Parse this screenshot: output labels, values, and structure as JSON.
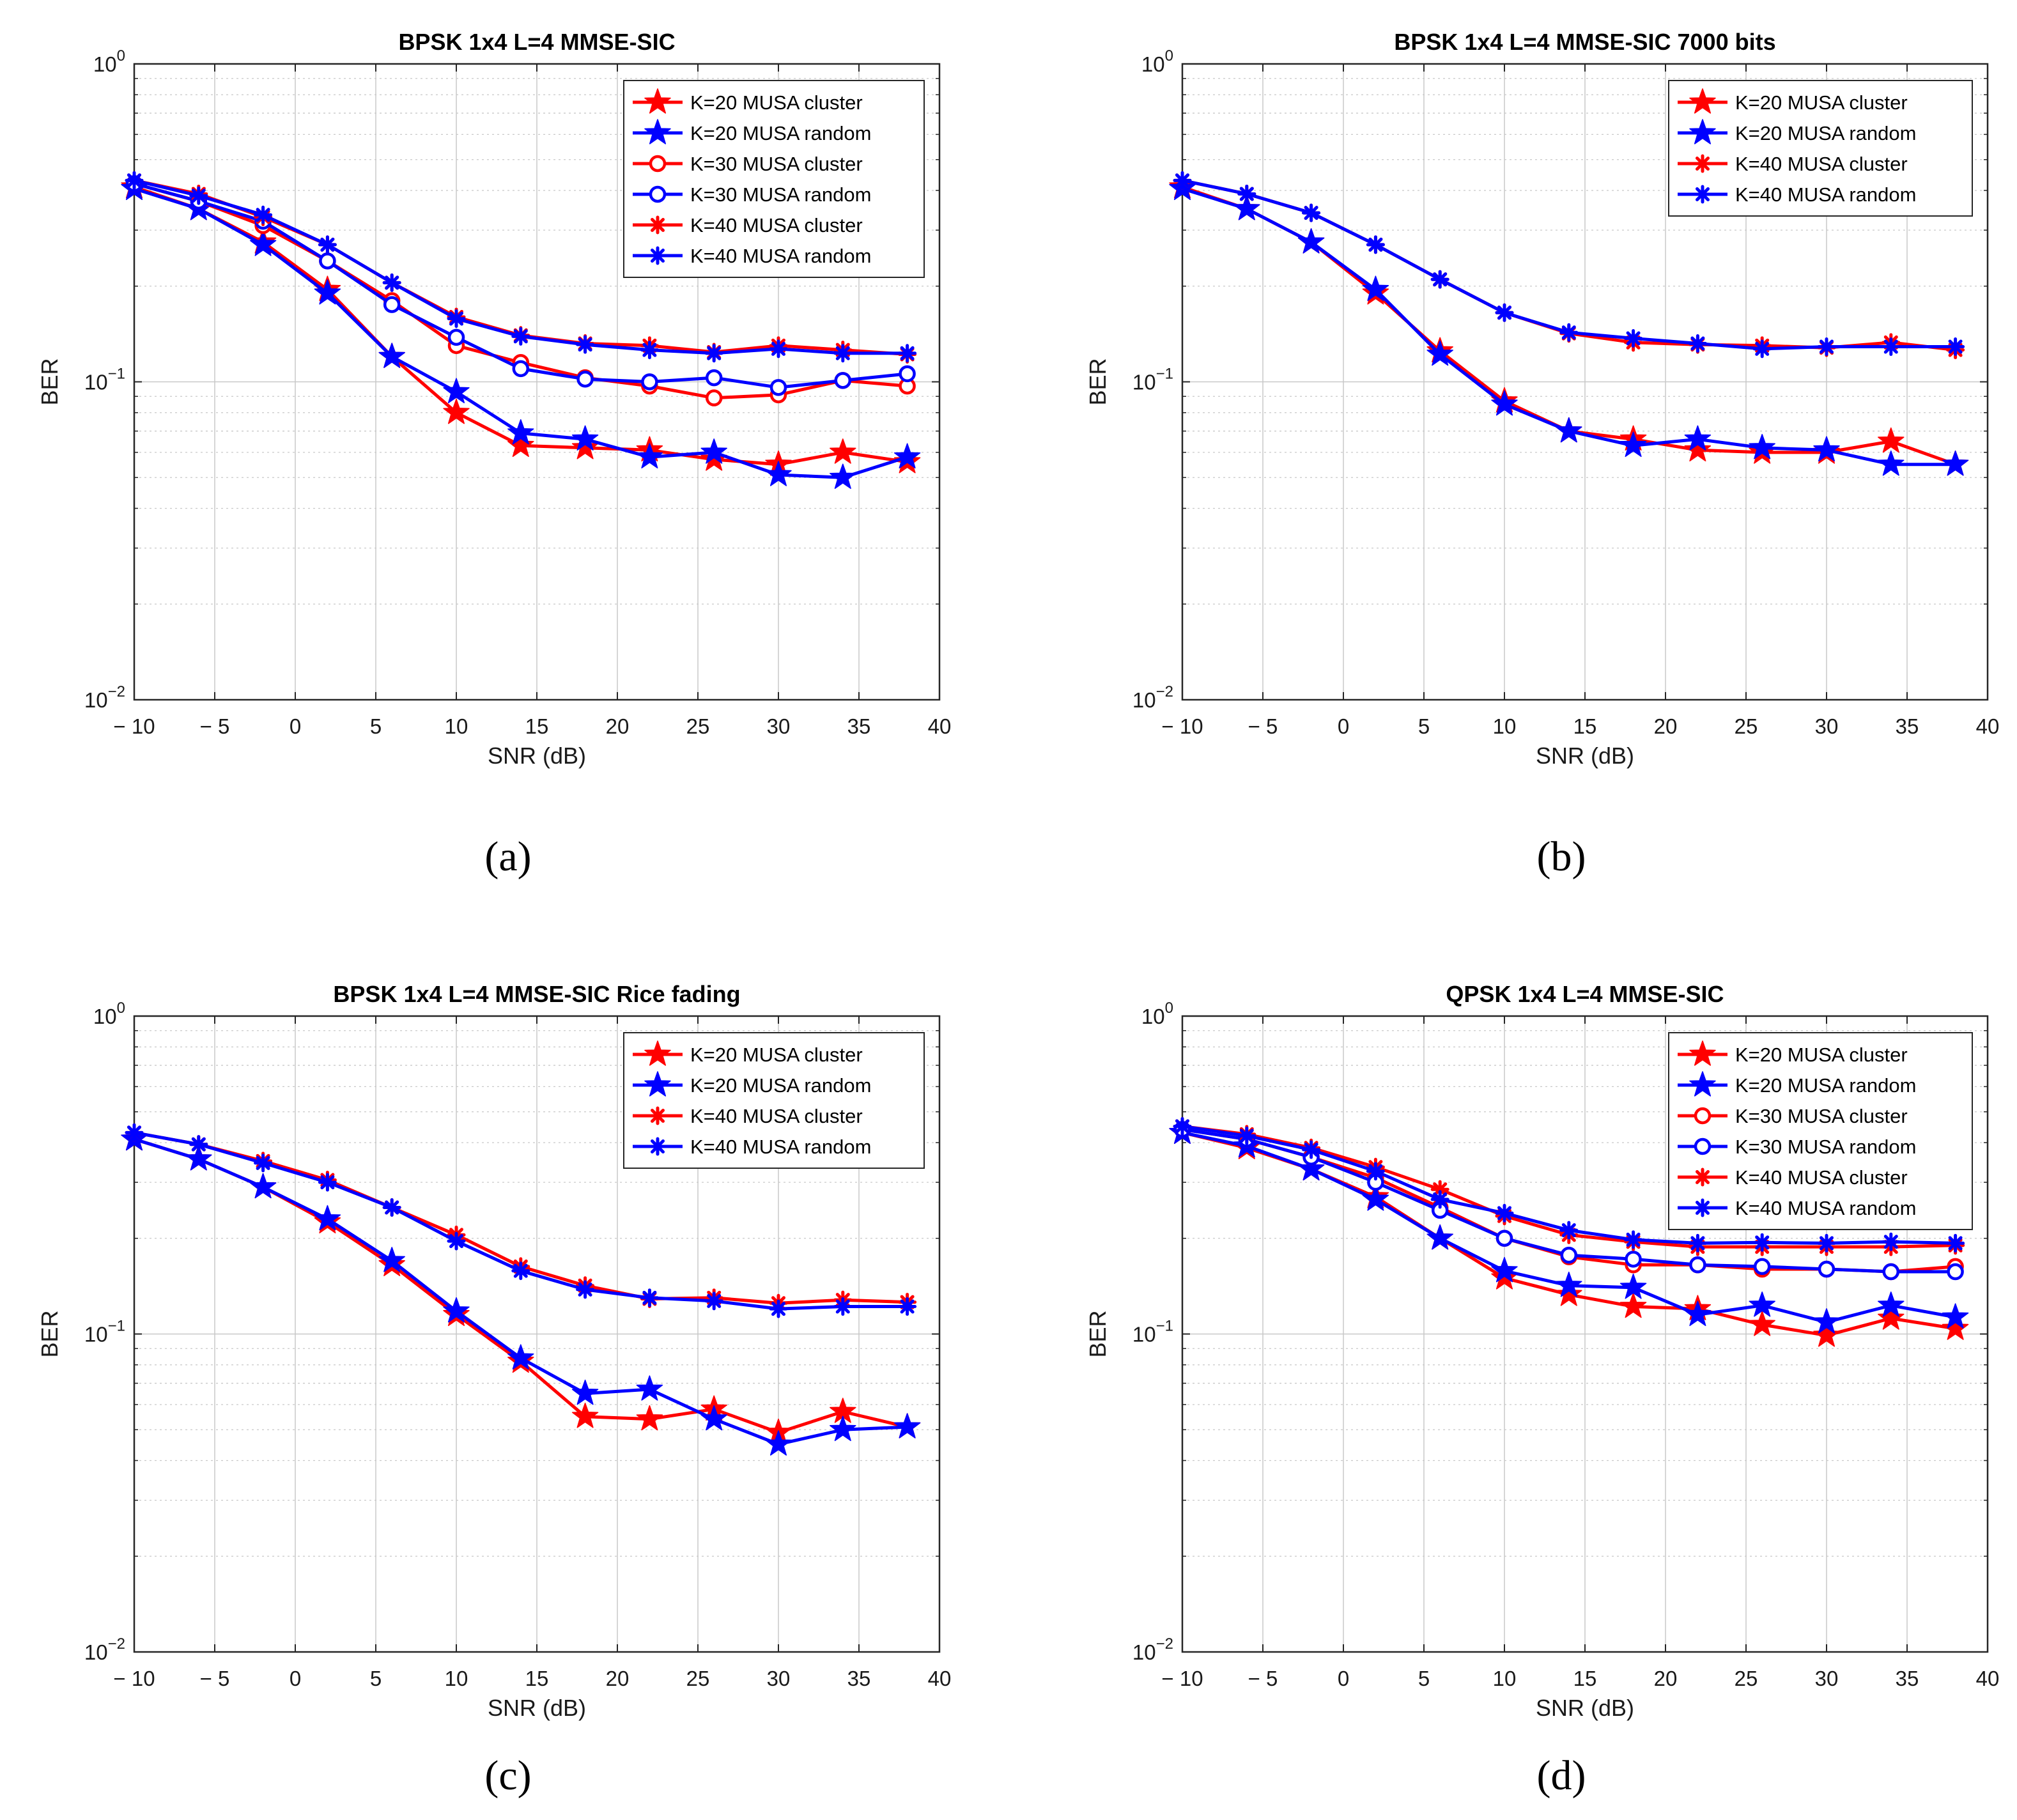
{
  "colors": {
    "cluster": "#ff0000",
    "random": "#0000ff",
    "grid": "#c8c8c8",
    "axis": "#262626"
  },
  "charts": [
    {
      "panel_label": "(a)",
      "chart_data": {
        "type": "line",
        "title": "BPSK 1x4 L=4 MMSE-SIC",
        "xlabel": "SNR (dB)",
        "ylabel": "BER",
        "xlim": [
          -10,
          40
        ],
        "ylim": [
          0.01,
          1
        ],
        "yscale": "log",
        "grid": true,
        "legend_position": "top-right",
        "x_ticks": [
          "− 10",
          "− 5",
          "0",
          "5",
          "10",
          "15",
          "20",
          "25",
          "30",
          "35",
          "40"
        ],
        "x_tick_values": [
          -10,
          -5,
          0,
          5,
          10,
          15,
          20,
          25,
          30,
          35,
          40
        ],
        "y_ticks": [
          {
            "value": 1,
            "base": "10",
            "exp": "0"
          },
          {
            "value": 0.1,
            "base": "10",
            "exp": "−1"
          },
          {
            "value": 0.01,
            "base": "10",
            "exp": "−2"
          }
        ],
        "x": [
          -10,
          -6,
          -2,
          2,
          6,
          10,
          14,
          18,
          22,
          26,
          30,
          34,
          38
        ],
        "series": [
          {
            "name": "K=20 MUSA cluster",
            "color": "cluster",
            "marker": "star",
            "values": [
              0.41,
              0.35,
              0.275,
              0.195,
              0.12,
              0.08,
              0.063,
              0.062,
              0.061,
              0.057,
              0.055,
              0.06,
              0.056
            ]
          },
          {
            "name": "K=20 MUSA random",
            "color": "random",
            "marker": "star",
            "values": [
              0.405,
              0.35,
              0.27,
              0.19,
              0.12,
              0.093,
              0.069,
              0.066,
              0.058,
              0.06,
              0.051,
              0.05,
              0.058
            ]
          },
          {
            "name": "K=30 MUSA cluster",
            "color": "cluster",
            "marker": "circle",
            "values": [
              0.42,
              0.37,
              0.31,
              0.24,
              0.18,
              0.13,
              0.115,
              0.103,
              0.097,
              0.089,
              0.091,
              0.101,
              0.097
            ]
          },
          {
            "name": "K=30 MUSA random",
            "color": "random",
            "marker": "circle",
            "values": [
              0.42,
              0.37,
              0.32,
              0.24,
              0.175,
              0.138,
              0.11,
              0.102,
              0.1,
              0.103,
              0.096,
              0.101,
              0.106
            ]
          },
          {
            "name": "K=40 MUSA cluster",
            "color": "cluster",
            "marker": "asterisk",
            "values": [
              0.43,
              0.39,
              0.33,
              0.27,
              0.205,
              0.16,
              0.14,
              0.132,
              0.13,
              0.124,
              0.13,
              0.126,
              0.122
            ]
          },
          {
            "name": "K=40 MUSA random",
            "color": "random",
            "marker": "asterisk",
            "values": [
              0.43,
              0.385,
              0.335,
              0.27,
              0.205,
              0.158,
              0.139,
              0.131,
              0.126,
              0.123,
              0.127,
              0.123,
              0.123
            ]
          }
        ]
      }
    },
    {
      "panel_label": "(b)",
      "chart_data": {
        "type": "line",
        "title": "BPSK 1x4 L=4 MMSE-SIC 7000 bits",
        "xlabel": "SNR (dB)",
        "ylabel": "BER",
        "xlim": [
          -10,
          40
        ],
        "ylim": [
          0.01,
          1
        ],
        "yscale": "log",
        "grid": true,
        "legend_position": "top-right",
        "x_ticks": [
          "− 10",
          "− 5",
          "0",
          "5",
          "10",
          "15",
          "20",
          "25",
          "30",
          "35",
          "40"
        ],
        "x_tick_values": [
          -10,
          -5,
          0,
          5,
          10,
          15,
          20,
          25,
          30,
          35,
          40
        ],
        "y_ticks": [
          {
            "value": 1,
            "base": "10",
            "exp": "0"
          },
          {
            "value": 0.1,
            "base": "10",
            "exp": "−1"
          },
          {
            "value": 0.01,
            "base": "10",
            "exp": "−2"
          }
        ],
        "x": [
          -10,
          -6,
          -2,
          2,
          6,
          10,
          14,
          18,
          22,
          26,
          30,
          34,
          38
        ],
        "series": [
          {
            "name": "K=20 MUSA cluster",
            "color": "cluster",
            "marker": "star",
            "values": [
              0.41,
              0.35,
              0.275,
              0.19,
              0.125,
              0.087,
              0.07,
              0.066,
              0.061,
              0.06,
              0.06,
              0.065,
              0.055
            ]
          },
          {
            "name": "K=20 MUSA random",
            "color": "random",
            "marker": "star",
            "values": [
              0.405,
              0.35,
              0.275,
              0.195,
              0.122,
              0.085,
              0.07,
              0.063,
              0.066,
              0.062,
              0.061,
              0.055,
              0.055
            ]
          },
          {
            "name": "K=40 MUSA cluster",
            "color": "cluster",
            "marker": "asterisk",
            "values": [
              0.43,
              0.39,
              0.34,
              0.27,
              0.21,
              0.165,
              0.142,
              0.133,
              0.131,
              0.13,
              0.128,
              0.133,
              0.126
            ]
          },
          {
            "name": "K=40 MUSA random",
            "color": "random",
            "marker": "asterisk",
            "values": [
              0.43,
              0.39,
              0.34,
              0.27,
              0.21,
              0.165,
              0.143,
              0.137,
              0.132,
              0.127,
              0.129,
              0.129,
              0.129
            ]
          }
        ]
      }
    },
    {
      "panel_label": "(c)",
      "chart_data": {
        "type": "line",
        "title": "BPSK 1x4 L=4 MMSE-SIC Rice fading",
        "xlabel": "SNR (dB)",
        "ylabel": "BER",
        "xlim": [
          -10,
          40
        ],
        "ylim": [
          0.01,
          1
        ],
        "yscale": "log",
        "grid": true,
        "legend_position": "top-right",
        "x_ticks": [
          "− 10",
          "− 5",
          "0",
          "5",
          "10",
          "15",
          "20",
          "25",
          "30",
          "35",
          "40"
        ],
        "x_tick_values": [
          -10,
          -5,
          0,
          5,
          10,
          15,
          20,
          25,
          30,
          35,
          40
        ],
        "y_ticks": [
          {
            "value": 1,
            "base": "10",
            "exp": "0"
          },
          {
            "value": 0.1,
            "base": "10",
            "exp": "−1"
          },
          {
            "value": 0.01,
            "base": "10",
            "exp": "−2"
          }
        ],
        "x": [
          -10,
          -6,
          -2,
          2,
          6,
          10,
          14,
          18,
          22,
          26,
          30,
          34,
          38
        ],
        "series": [
          {
            "name": "K=20 MUSA cluster",
            "color": "cluster",
            "marker": "star",
            "values": [
              0.41,
              0.355,
              0.29,
              0.225,
              0.165,
              0.115,
              0.082,
              0.055,
              0.054,
              0.058,
              0.049,
              0.057,
              0.051
            ]
          },
          {
            "name": "K=20 MUSA random",
            "color": "random",
            "marker": "star",
            "values": [
              0.41,
              0.355,
              0.29,
              0.23,
              0.17,
              0.118,
              0.084,
              0.065,
              0.067,
              0.054,
              0.045,
              0.05,
              0.051
            ]
          },
          {
            "name": "K=40 MUSA cluster",
            "color": "cluster",
            "marker": "asterisk",
            "values": [
              0.43,
              0.395,
              0.35,
              0.305,
              0.25,
              0.205,
              0.163,
              0.142,
              0.129,
              0.13,
              0.125,
              0.128,
              0.126
            ]
          },
          {
            "name": "K=40 MUSA random",
            "color": "random",
            "marker": "asterisk",
            "values": [
              0.43,
              0.395,
              0.345,
              0.3,
              0.25,
              0.196,
              0.158,
              0.138,
              0.13,
              0.127,
              0.12,
              0.122,
              0.122
            ]
          }
        ]
      }
    },
    {
      "panel_label": "(d)",
      "chart_data": {
        "type": "line",
        "title": "QPSK 1x4 L=4 MMSE-SIC",
        "xlabel": "SNR (dB)",
        "ylabel": "BER",
        "xlim": [
          -10,
          40
        ],
        "ylim": [
          0.01,
          1
        ],
        "yscale": "log",
        "grid": true,
        "legend_position": "top-right",
        "x_ticks": [
          "− 10",
          "− 5",
          "0",
          "5",
          "10",
          "15",
          "20",
          "25",
          "30",
          "35",
          "40"
        ],
        "x_tick_values": [
          -10,
          -5,
          0,
          5,
          10,
          15,
          20,
          25,
          30,
          35,
          40
        ],
        "y_ticks": [
          {
            "value": 1,
            "base": "10",
            "exp": "0"
          },
          {
            "value": 0.1,
            "base": "10",
            "exp": "−1"
          },
          {
            "value": 0.01,
            "base": "10",
            "exp": "−2"
          }
        ],
        "x": [
          -10,
          -6,
          -2,
          2,
          6,
          10,
          14,
          18,
          22,
          26,
          30,
          34,
          38
        ],
        "series": [
          {
            "name": "K=20 MUSA cluster",
            "color": "cluster",
            "marker": "star",
            "values": [
              0.43,
              0.385,
              0.33,
              0.27,
              0.2,
              0.15,
              0.133,
              0.122,
              0.12,
              0.107,
              0.099,
              0.112,
              0.104
            ]
          },
          {
            "name": "K=20 MUSA random",
            "color": "random",
            "marker": "star",
            "values": [
              0.43,
              0.39,
              0.33,
              0.265,
              0.2,
              0.158,
              0.142,
              0.14,
              0.115,
              0.123,
              0.109,
              0.123,
              0.113
            ]
          },
          {
            "name": "K=30 MUSA cluster",
            "color": "cluster",
            "marker": "circle",
            "values": [
              0.44,
              0.41,
              0.36,
              0.31,
              0.25,
              0.2,
              0.175,
              0.165,
              0.165,
              0.16,
              0.16,
              0.157,
              0.163
            ]
          },
          {
            "name": "K=30 MUSA random",
            "color": "random",
            "marker": "circle",
            "values": [
              0.44,
              0.41,
              0.36,
              0.3,
              0.245,
              0.2,
              0.177,
              0.172,
              0.165,
              0.163,
              0.16,
              0.157,
              0.157
            ]
          },
          {
            "name": "K=40 MUSA cluster",
            "color": "cluster",
            "marker": "asterisk",
            "values": [
              0.45,
              0.425,
              0.385,
              0.335,
              0.285,
              0.235,
              0.205,
              0.195,
              0.188,
              0.188,
              0.188,
              0.188,
              0.19
            ]
          },
          {
            "name": "K=40 MUSA random",
            "color": "random",
            "marker": "asterisk",
            "values": [
              0.45,
              0.42,
              0.38,
              0.325,
              0.265,
              0.24,
              0.212,
              0.198,
              0.193,
              0.194,
              0.193,
              0.195,
              0.193
            ]
          }
        ]
      }
    }
  ]
}
